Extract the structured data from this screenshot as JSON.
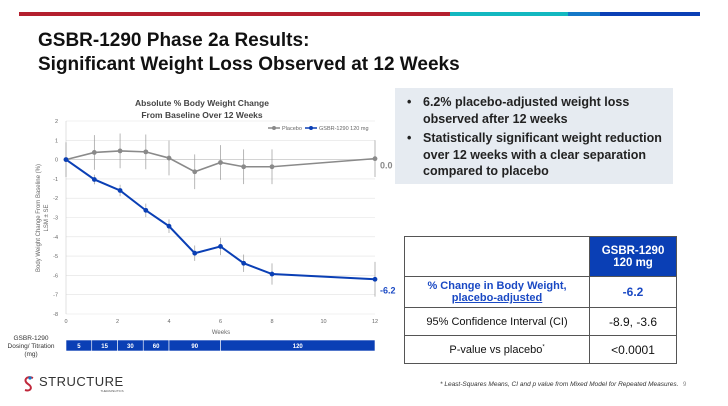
{
  "topbar_colors": [
    "#b41f2e",
    "#12b8c0",
    "#1478c8",
    "#0a3fb5"
  ],
  "title": {
    "line1": "GSBR-1290 Phase 2a Results:",
    "line2": "Significant Weight Loss Observed at 12 Weeks"
  },
  "bullets": [
    "6.2% placebo-adjusted weight loss observed after 12 weeks",
    "Statistically significant weight reduction over 12 weeks with a clear separation compared to placebo"
  ],
  "table": {
    "header": [
      "",
      "GSBR-1290",
      "120 mg"
    ],
    "rows": [
      {
        "label": "% Change in Body Weight,",
        "label2": "placebo-adjusted",
        "value": "-6.2"
      },
      {
        "label": "95% Confidence Interval (CI)",
        "value": "-8.9, -3.6"
      },
      {
        "label": "P-value vs placebo",
        "sup": "*",
        "value": "<0.0001"
      }
    ]
  },
  "chart_data": {
    "type": "line",
    "title": "Absolute % Body Weight Change",
    "subtitle": "From Baseline Over 12 Weeks",
    "xlabel": "Weeks",
    "ylabel": "Body Weight Change From Baseline (%)",
    "ylabel2": "LSM ± SE",
    "xlim": [
      0,
      12
    ],
    "ylim": [
      -8,
      2
    ],
    "xticks": [
      "0",
      "2",
      "4",
      "6",
      "8",
      "10",
      "12"
    ],
    "yticks": [
      "2",
      "1",
      "0",
      "-1",
      "-2",
      "-3",
      "-4",
      "-5",
      "-6",
      "-7",
      "-8"
    ],
    "grid": "horizontal",
    "legend": "top-right",
    "series": [
      {
        "name": "Placebo",
        "color": "#8a8a8a",
        "x": [
          0,
          1.1,
          2.1,
          3.1,
          4,
          5,
          6,
          6.9,
          8,
          12
        ],
        "y": [
          0,
          0.37,
          0.45,
          0.4,
          0.08,
          -0.63,
          -0.15,
          -0.37,
          -0.37,
          0.05
        ],
        "err": [
          0.9,
          0.9,
          0.9,
          0.9,
          0.9,
          0.9,
          0.9,
          0.9,
          0.9,
          0.95
        ],
        "end_label": "0.0"
      },
      {
        "name": "GSBR-1290 120 mg",
        "color": "#0a3fb5",
        "x": [
          0,
          1.1,
          2.1,
          3.1,
          4,
          5,
          6,
          6.9,
          8,
          12
        ],
        "y": [
          0,
          -1.03,
          -1.6,
          -2.63,
          -3.45,
          -4.85,
          -4.5,
          -5.37,
          -5.93,
          -6.2
        ],
        "err": [
          0,
          0.25,
          0.3,
          0.35,
          0.35,
          0.4,
          0.45,
          0.45,
          0.55,
          0.9
        ],
        "end_label": "-6.2"
      }
    ]
  },
  "dosing": {
    "label": "GSBR-1290 Dosing/ Titration (mg)",
    "segments": [
      {
        "dose": "5",
        "from": 0,
        "to": 1
      },
      {
        "dose": "15",
        "from": 1,
        "to": 2
      },
      {
        "dose": "30",
        "from": 2,
        "to": 3
      },
      {
        "dose": "60",
        "from": 3,
        "to": 4
      },
      {
        "dose": "90",
        "from": 4,
        "to": 6
      },
      {
        "dose": "120",
        "from": 6,
        "to": 12
      }
    ]
  },
  "logo": {
    "name": "STRUCTURE",
    "sub": "THERAPEUTICS"
  },
  "footnote": "* Least-Squares Means, CI and p value from Mixed Model for Repeated Measures.",
  "page": "9"
}
